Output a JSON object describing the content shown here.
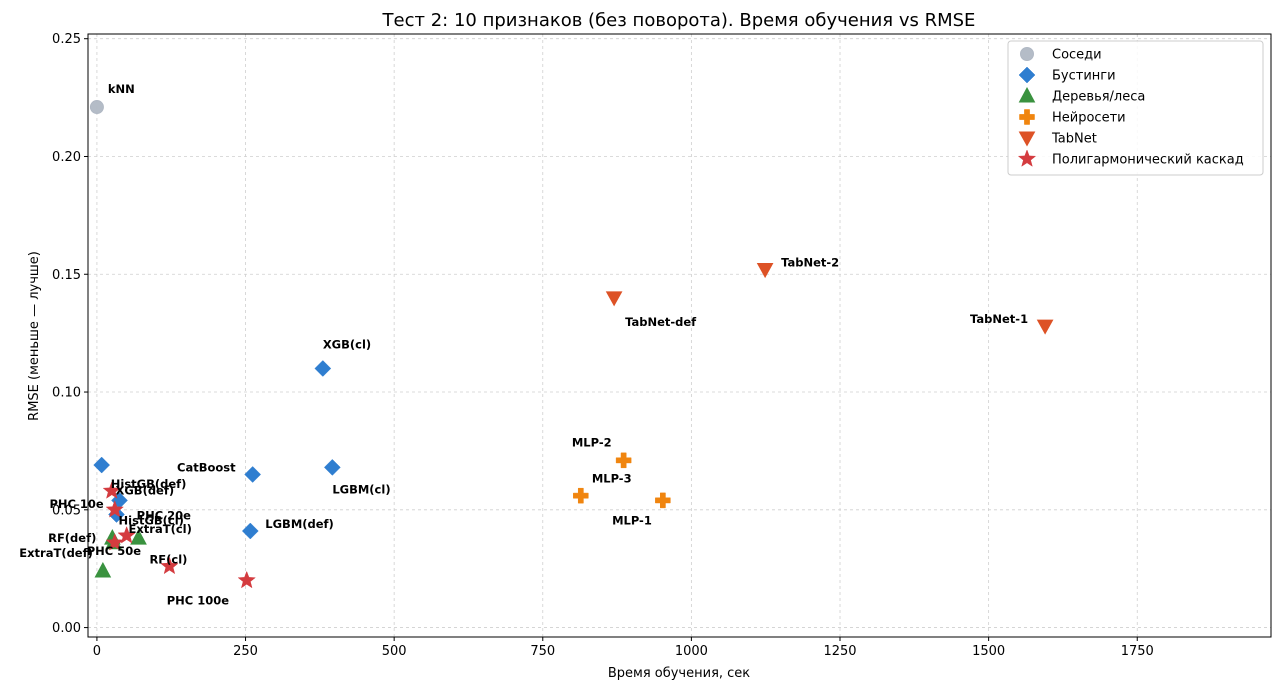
{
  "chart_data": {
    "type": "scatter",
    "title": "Тест 2: 10 признаков (без поворота). Время обучения vs RMSE",
    "xlabel": "Время обучения, сек",
    "ylabel": "RMSE (меньше — лучше)",
    "xlim": [
      -15,
      1975
    ],
    "ylim": [
      -0.004,
      0.252
    ],
    "x_ticks": [
      0,
      250,
      500,
      750,
      1000,
      1250,
      1500,
      1750
    ],
    "y_ticks": [
      0.0,
      0.05,
      0.1,
      0.15,
      0.2,
      0.25
    ],
    "grid": true,
    "legend_position": "top-right",
    "series": [
      {
        "name": "Соседи",
        "marker": "circle",
        "color": "#b0b8c4",
        "points": [
          {
            "label": "kNN",
            "x": 0,
            "y": 0.221
          }
        ]
      },
      {
        "name": "Бустинги",
        "marker": "diamond",
        "color": "#2f7ed0",
        "points": [
          {
            "label": "",
            "x": 8,
            "y": 0.069
          },
          {
            "label": "CatBoost",
            "x": 262,
            "y": 0.065
          },
          {
            "label": "XGB(cl)",
            "x": 380,
            "y": 0.11
          },
          {
            "label": "LGBM(cl)",
            "x": 396,
            "y": 0.068
          },
          {
            "label": "LGBM(def)",
            "x": 258,
            "y": 0.041
          },
          {
            "label": "XGB(def)",
            "x": 38,
            "y": 0.054
          },
          {
            "label": "HistGB(cl)",
            "x": 33,
            "y": 0.048
          }
        ]
      },
      {
        "name": "Деревья/леса",
        "marker": "triangle-up",
        "color": "#3a923f",
        "points": [
          {
            "label": "ExtraT(def)",
            "x": 10,
            "y": 0.024
          },
          {
            "label": "RF(def)",
            "x": 26,
            "y": 0.038
          },
          {
            "label": "",
            "x": 28,
            "y": 0.036
          },
          {
            "label": "ExtraT(cl)",
            "x": 70,
            "y": 0.038
          }
        ]
      },
      {
        "name": "Нейросети",
        "marker": "plus",
        "color": "#f0850f",
        "points": [
          {
            "label": "MLP-2",
            "x": 886,
            "y": 0.071
          },
          {
            "label": "MLP-3",
            "x": 814,
            "y": 0.056
          },
          {
            "label": "MLP-1",
            "x": 952,
            "y": 0.054
          }
        ]
      },
      {
        "name": "TabNet",
        "marker": "triangle-down",
        "color": "#dd5226",
        "points": [
          {
            "label": "TabNet-def",
            "x": 870,
            "y": 0.14
          },
          {
            "label": "TabNet-2",
            "x": 1124,
            "y": 0.152
          },
          {
            "label": "TabNet-1",
            "x": 1595,
            "y": 0.128
          }
        ]
      },
      {
        "name": "Полигармонический каскад",
        "marker": "star",
        "color": "#d43b3f",
        "points": [
          {
            "label": "HistGB(def)",
            "x": 25,
            "y": 0.058
          },
          {
            "label": "PHC 10e",
            "x": 30,
            "y": 0.05
          },
          {
            "label": "PHC 20e",
            "x": 50,
            "y": 0.039
          },
          {
            "label": "PHC 50e",
            "x": 30,
            "y": 0.036
          },
          {
            "label": "RF(cl)",
            "x": 122,
            "y": 0.026
          },
          {
            "label": "PHC 100e",
            "x": 252,
            "y": 0.02
          }
        ]
      }
    ]
  }
}
